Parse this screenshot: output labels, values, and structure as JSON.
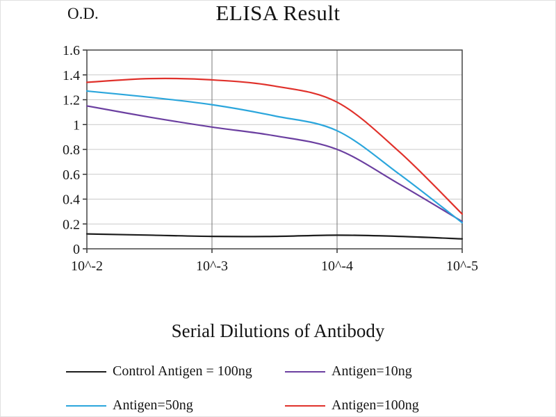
{
  "chart_data": {
    "type": "line",
    "title": "ELISA Result",
    "ylabel": "O.D.",
    "xlabel": "Serial Dilutions of Antibody",
    "x_tick_labels": [
      "10^-2",
      "10^-3",
      "10^-4",
      "10^-5"
    ],
    "y_tick_labels": [
      "0",
      "0.2",
      "0.4",
      "0.6",
      "0.8",
      "1",
      "1.2",
      "1.4",
      "1.6"
    ],
    "ylim": [
      0,
      1.6
    ],
    "grid": true,
    "legend_position": "bottom",
    "x_exponents": [
      -2,
      -2.5,
      -3,
      -3.5,
      -4,
      -4.5,
      -5
    ],
    "x_positions": [
      0,
      0.167,
      0.333,
      0.5,
      0.667,
      0.833,
      1
    ],
    "series": [
      {
        "name": "Control Antigen = 100ng",
        "color": "#1c1c1c",
        "values": [
          0.12,
          0.11,
          0.1,
          0.1,
          0.11,
          0.1,
          0.08
        ]
      },
      {
        "name": "Antigen=10ng",
        "color": "#6b3fa0",
        "values": [
          1.15,
          1.06,
          0.98,
          0.91,
          0.8,
          0.52,
          0.22
        ]
      },
      {
        "name": "Antigen=50ng",
        "color": "#2ba6dc",
        "values": [
          1.27,
          1.22,
          1.16,
          1.07,
          0.95,
          0.6,
          0.21
        ]
      },
      {
        "name": "Antigen=100ng",
        "color": "#e0312b",
        "values": [
          1.34,
          1.37,
          1.36,
          1.31,
          1.18,
          0.78,
          0.28
        ]
      }
    ],
    "colors": {
      "grid_horizontal": "#c9c9c9",
      "grid_vertical": "#777777",
      "axis_border": "#444444",
      "tick": "#333333"
    }
  }
}
